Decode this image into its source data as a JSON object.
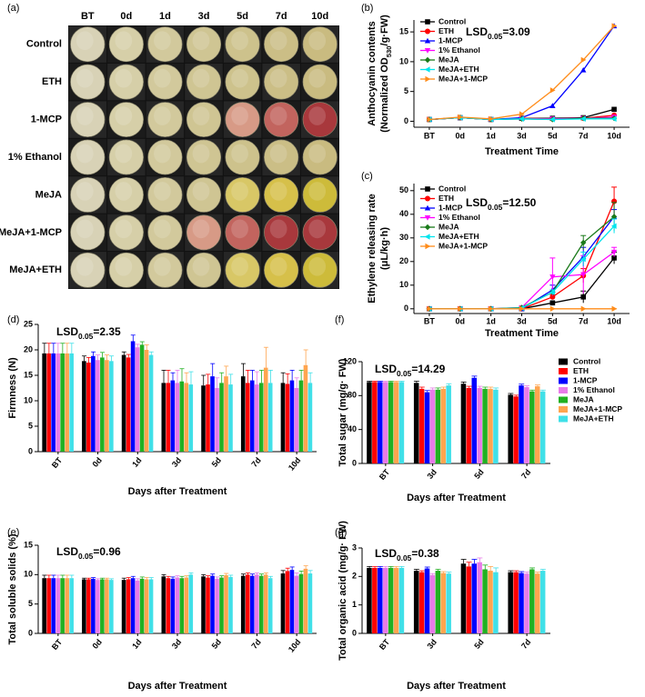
{
  "chart_data": [
    {
      "type": "image-grid",
      "panel": "(a)",
      "columns": [
        "BT",
        "0d",
        "1d",
        "3d",
        "5d",
        "7d",
        "10d"
      ],
      "rows": [
        "Control",
        "ETH",
        "1-MCP",
        "1% Ethanol",
        "MeJA",
        "MeJA+1-MCP",
        "MeJA+ETH"
      ]
    },
    {
      "type": "line",
      "panel": "(b)",
      "annotation": [
        "LSD",
        "0.05",
        "=3.09"
      ],
      "ylabel": [
        [
          "Anthocyanin contents"
        ],
        [
          "(Normalized OD",
          "530",
          "/g·FW)"
        ]
      ],
      "xlabel": "Treatment Time",
      "categories": [
        "BT",
        "0d",
        "1d",
        "3d",
        "5d",
        "7d",
        "10d"
      ],
      "ylim": [
        -1,
        17
      ],
      "yticks": [
        0,
        5,
        10,
        15
      ],
      "legend": "upper left",
      "series": [
        {
          "name": "Control",
          "color": "#000000",
          "marker": "square",
          "values": [
            0.3,
            0.6,
            0.3,
            0.5,
            0.5,
            0.6,
            2.0
          ]
        },
        {
          "name": "ETH",
          "color": "#ff0000",
          "marker": "circle",
          "values": [
            0.3,
            0.6,
            0.3,
            0.5,
            0.4,
            0.5,
            1.0
          ]
        },
        {
          "name": "1-MCP",
          "color": "#0000ff",
          "marker": "triangle",
          "values": [
            0.3,
            0.6,
            0.3,
            0.6,
            2.6,
            8.6,
            16.0
          ]
        },
        {
          "name": "1% Ethanol",
          "color": "#ff00ff",
          "marker": "triangle-down",
          "values": [
            0.3,
            0.6,
            0.3,
            0.4,
            0.4,
            0.5,
            0.7
          ]
        },
        {
          "name": "MeJA",
          "color": "#1a7a1a",
          "marker": "diamond",
          "values": [
            0.3,
            0.6,
            0.3,
            0.4,
            0.3,
            0.5,
            0.5
          ]
        },
        {
          "name": "MeJA+ETH",
          "color": "#00e5ee",
          "marker": "triangle-left",
          "values": [
            0.3,
            0.6,
            0.3,
            0.4,
            0.3,
            0.4,
            0.4
          ]
        },
        {
          "name": "MeJA+1-MCP",
          "color": "#ff8c1a",
          "marker": "triangle-right",
          "values": [
            0.3,
            0.7,
            0.4,
            1.2,
            5.2,
            10.3,
            16.0
          ]
        }
      ]
    },
    {
      "type": "line",
      "panel": "(c)",
      "annotation": [
        "LSD",
        "0.05",
        "=12.50"
      ],
      "ylabel": [
        [
          "Ethylene releasing rate"
        ],
        [
          "(μL/kg·h)"
        ]
      ],
      "xlabel": "Treatment Time",
      "categories": [
        "BT",
        "0d",
        "1d",
        "3d",
        "5d",
        "7d",
        "10d"
      ],
      "ylim": [
        -2,
        53
      ],
      "yticks": [
        0,
        10,
        20,
        30,
        40,
        50
      ],
      "legend": "upper left",
      "series": [
        {
          "name": "Control",
          "color": "#000000",
          "marker": "square",
          "values": [
            0,
            0,
            0,
            0,
            2.5,
            5,
            21.5
          ],
          "errors": [
            0,
            0,
            0,
            0,
            0.5,
            2.5,
            2.5
          ]
        },
        {
          "name": "ETH",
          "color": "#ff0000",
          "marker": "circle",
          "values": [
            0,
            0,
            0,
            0,
            5,
            14,
            45.5
          ],
          "errors": [
            0,
            0,
            0,
            0,
            1,
            3,
            6
          ]
        },
        {
          "name": "1-MCP",
          "color": "#0000ff",
          "marker": "triangle",
          "values": [
            0,
            0,
            0,
            0,
            8,
            22,
            39
          ],
          "errors": [
            0,
            0,
            0,
            0,
            2,
            4,
            3
          ]
        },
        {
          "name": "1% Ethanol",
          "color": "#ff00ff",
          "marker": "triangle-down",
          "values": [
            0,
            0,
            0,
            0.5,
            13.5,
            14.5,
            24
          ],
          "errors": [
            0,
            0,
            0,
            0,
            8,
            8,
            2
          ]
        },
        {
          "name": "MeJA",
          "color": "#1a7a1a",
          "marker": "diamond",
          "values": [
            0,
            0,
            0,
            0.5,
            7,
            28,
            39
          ],
          "errors": [
            0,
            0,
            0,
            0,
            1,
            3,
            6
          ]
        },
        {
          "name": "MeJA+ETH",
          "color": "#00e5ee",
          "marker": "triangle-left",
          "values": [
            0,
            0,
            0,
            0.3,
            7,
            21,
            35
          ],
          "errors": [
            0,
            0,
            0,
            0,
            1,
            3,
            3
          ]
        },
        {
          "name": "MeJA+1-MCP",
          "color": "#ff8c1a",
          "marker": "triangle-right",
          "values": [
            0,
            0,
            0,
            0,
            0,
            0,
            0
          ],
          "errors": [
            0,
            0,
            0,
            0,
            0,
            0,
            0
          ]
        }
      ]
    },
    {
      "type": "bar",
      "panel": "(d)",
      "annotation": [
        "LSD",
        "0.05",
        "=2.35"
      ],
      "ylabel": [
        [
          "Firmness (N)"
        ]
      ],
      "xlabel": "Days after Treatment",
      "categories": [
        "BT",
        "0d",
        "1d",
        "3d",
        "5d",
        "7d",
        "10d"
      ],
      "ylim": [
        0,
        25
      ],
      "yticks": [
        0,
        5,
        10,
        15,
        20,
        25
      ],
      "series": [
        {
          "name": "Control",
          "color": "#000000",
          "values": [
            19.3,
            17.8,
            19,
            13.5,
            13,
            14.8,
            13.5
          ],
          "errors": [
            2,
            1,
            0.6,
            2.5,
            2,
            2.5,
            2
          ]
        },
        {
          "name": "ETH",
          "color": "#ff0000",
          "values": [
            19.3,
            17.5,
            18.5,
            13.5,
            13.2,
            13.5,
            13.3
          ],
          "errors": [
            2,
            1,
            0.6,
            2.5,
            2,
            2.5,
            2
          ]
        },
        {
          "name": "1-MCP",
          "color": "#0000ff",
          "values": [
            19.3,
            18.8,
            21.7,
            14,
            14.8,
            14,
            14
          ],
          "errors": [
            2,
            0.8,
            1.2,
            1.5,
            2.5,
            2,
            2
          ]
        },
        {
          "name": "1% Ethanol",
          "color": "#e87be8",
          "values": [
            19.3,
            18,
            20.5,
            13.5,
            12.5,
            13.2,
            12.5
          ],
          "errors": [
            2,
            1,
            0.6,
            2.5,
            2,
            2.5,
            2
          ]
        },
        {
          "name": "MeJA",
          "color": "#22b022",
          "values": [
            19.3,
            18.5,
            21,
            13.8,
            13.5,
            13.5,
            14
          ],
          "errors": [
            2,
            1,
            0.6,
            2.5,
            2,
            2.5,
            2
          ]
        },
        {
          "name": "MeJA+1-MCP",
          "color": "#ffa54f",
          "values": [
            19.3,
            18,
            20,
            13.5,
            14.8,
            16.5,
            17
          ],
          "errors": [
            2,
            1,
            1,
            2,
            2,
            4,
            3
          ]
        },
        {
          "name": "MeJA+ETH",
          "color": "#40e0e8",
          "values": [
            19.3,
            17.8,
            19,
            13.2,
            13.2,
            13.5,
            13.5
          ],
          "errors": [
            2,
            1,
            0.6,
            2.5,
            2,
            2.5,
            2
          ]
        }
      ]
    },
    {
      "type": "bar",
      "panel": "(f)",
      "annotation": [
        "LSD",
        "0.05",
        "=14.29"
      ],
      "ylabel": [
        [
          "Total sugar (mg/g· FW)"
        ]
      ],
      "xlabel": "Days after Treatment",
      "categories": [
        "BT",
        "3d",
        "5d",
        "7d"
      ],
      "ylim": [
        0,
        120
      ],
      "yticks": [
        0,
        40,
        80,
        120
      ],
      "legend": "right",
      "series": [
        {
          "name": "Control",
          "color": "#000000",
          "values": [
            96,
            95,
            94,
            81
          ],
          "errors": [
            1,
            2,
            2,
            1.5
          ]
        },
        {
          "name": "ETH",
          "color": "#ff0000",
          "values": [
            96,
            88,
            89,
            79
          ],
          "errors": [
            1,
            2,
            2,
            1.5
          ]
        },
        {
          "name": "1-MCP",
          "color": "#0000ff",
          "values": [
            96,
            84,
            101,
            92
          ],
          "errors": [
            1,
            2,
            2,
            1.5
          ]
        },
        {
          "name": "1% Ethanol",
          "color": "#e87be8",
          "values": [
            96,
            87,
            89,
            90
          ],
          "errors": [
            1,
            2,
            2,
            1.5
          ]
        },
        {
          "name": "MeJA",
          "color": "#22b022",
          "values": [
            96,
            87,
            88,
            85
          ],
          "errors": [
            1,
            2,
            2,
            1.5
          ]
        },
        {
          "name": "MeJA+1-MCP",
          "color": "#ffa54f",
          "values": [
            96,
            88,
            88,
            91
          ],
          "errors": [
            1,
            2,
            2,
            1.5
          ]
        },
        {
          "name": "MeJA+ETH",
          "color": "#40e0e8",
          "values": [
            96,
            92,
            87,
            85
          ],
          "errors": [
            1,
            2,
            2,
            1.5
          ]
        }
      ]
    },
    {
      "type": "bar",
      "panel": "(e)",
      "annotation": [
        "LSD",
        "0.05",
        "=0.96"
      ],
      "ylabel": [
        [
          "Total soluble solids (%)"
        ]
      ],
      "xlabel": "Days after Treatment",
      "categories": [
        "BT",
        "0d",
        "1d",
        "3d",
        "5d",
        "7d",
        "10d"
      ],
      "ylim": [
        0,
        15
      ],
      "yticks": [
        0,
        5,
        10,
        15
      ],
      "series": [
        {
          "name": "Control",
          "color": "#000000",
          "values": [
            9.4,
            9.2,
            9.1,
            9.7,
            9.7,
            9.8,
            10.2
          ],
          "errors": [
            0.5,
            0.2,
            0.3,
            0.3,
            0.3,
            0.3,
            0.5
          ]
        },
        {
          "name": "ETH",
          "color": "#ff0000",
          "values": [
            9.4,
            9.2,
            9.2,
            9.4,
            9.5,
            10,
            10.6
          ],
          "errors": [
            0.5,
            0.2,
            0.3,
            0.3,
            0.3,
            0.3,
            0.5
          ]
        },
        {
          "name": "1-MCP",
          "color": "#0000ff",
          "values": [
            9.4,
            9.3,
            9.4,
            9.3,
            9.8,
            9.8,
            10.8
          ],
          "errors": [
            0.5,
            0.2,
            0.3,
            0.3,
            0.3,
            0.3,
            0.5
          ]
        },
        {
          "name": "1% Ethanol",
          "color": "#e87be8",
          "values": [
            9.4,
            9.1,
            9,
            9.5,
            9.3,
            10,
            9.8
          ],
          "errors": [
            0.5,
            0.2,
            0.3,
            0.3,
            0.3,
            0.3,
            0.5
          ]
        },
        {
          "name": "MeJA",
          "color": "#22b022",
          "values": [
            9.4,
            9.2,
            9.3,
            9.4,
            9.5,
            9.8,
            10.1
          ],
          "errors": [
            0.5,
            0.2,
            0.3,
            0.3,
            0.3,
            0.3,
            0.5
          ]
        },
        {
          "name": "MeJA+1-MCP",
          "color": "#ffa54f",
          "values": [
            9.4,
            9.2,
            9.2,
            9.5,
            9.9,
            10,
            11
          ],
          "errors": [
            0.5,
            0.2,
            0.3,
            0.3,
            0.3,
            0.3,
            0.5
          ]
        },
        {
          "name": "MeJA+ETH",
          "color": "#40e0e8",
          "values": [
            9.4,
            9.1,
            9.2,
            10,
            9.6,
            9.4,
            10.2
          ],
          "errors": [
            0.5,
            0.2,
            0.3,
            0.3,
            0.3,
            0.3,
            0.5
          ]
        }
      ]
    },
    {
      "type": "bar",
      "panel": "(g)",
      "annotation": [
        "LSD",
        "0.05",
        "=0.38"
      ],
      "ylabel": [
        [
          "Total organic acid (mg/g· FW)"
        ]
      ],
      "xlabel": "Days after Treatment",
      "categories": [
        "BT",
        "3d",
        "5d",
        "7d"
      ],
      "ylim": [
        0,
        3
      ],
      "yticks": [
        0,
        1,
        2,
        3
      ],
      "series": [
        {
          "name": "Control",
          "color": "#000000",
          "values": [
            2.3,
            2.2,
            2.45,
            2.15
          ],
          "errors": [
            0.05,
            0.05,
            0.15,
            0.05
          ]
        },
        {
          "name": "ETH",
          "color": "#ff0000",
          "values": [
            2.3,
            2.15,
            2.35,
            2.15
          ],
          "errors": [
            0.05,
            0.05,
            0.15,
            0.05
          ]
        },
        {
          "name": "1-MCP",
          "color": "#0000ff",
          "values": [
            2.3,
            2.28,
            2.45,
            2.12
          ],
          "errors": [
            0.05,
            0.05,
            0.15,
            0.05
          ]
        },
        {
          "name": "1% Ethanol",
          "color": "#e87be8",
          "values": [
            2.3,
            2.05,
            2.5,
            2.1
          ],
          "errors": [
            0.05,
            0.05,
            0.15,
            0.05
          ]
        },
        {
          "name": "MeJA",
          "color": "#22b022",
          "values": [
            2.3,
            2.2,
            2.25,
            2.25
          ],
          "errors": [
            0.05,
            0.05,
            0.15,
            0.05
          ]
        },
        {
          "name": "MeJA+1-MCP",
          "color": "#ffa54f",
          "values": [
            2.3,
            2.12,
            2.2,
            2.1
          ],
          "errors": [
            0.05,
            0.05,
            0.15,
            0.05
          ]
        },
        {
          "name": "MeJA+ETH",
          "color": "#40e0e8",
          "values": [
            2.3,
            2.1,
            2.15,
            2.2
          ],
          "errors": [
            0.05,
            0.05,
            0.15,
            0.05
          ]
        }
      ]
    }
  ]
}
